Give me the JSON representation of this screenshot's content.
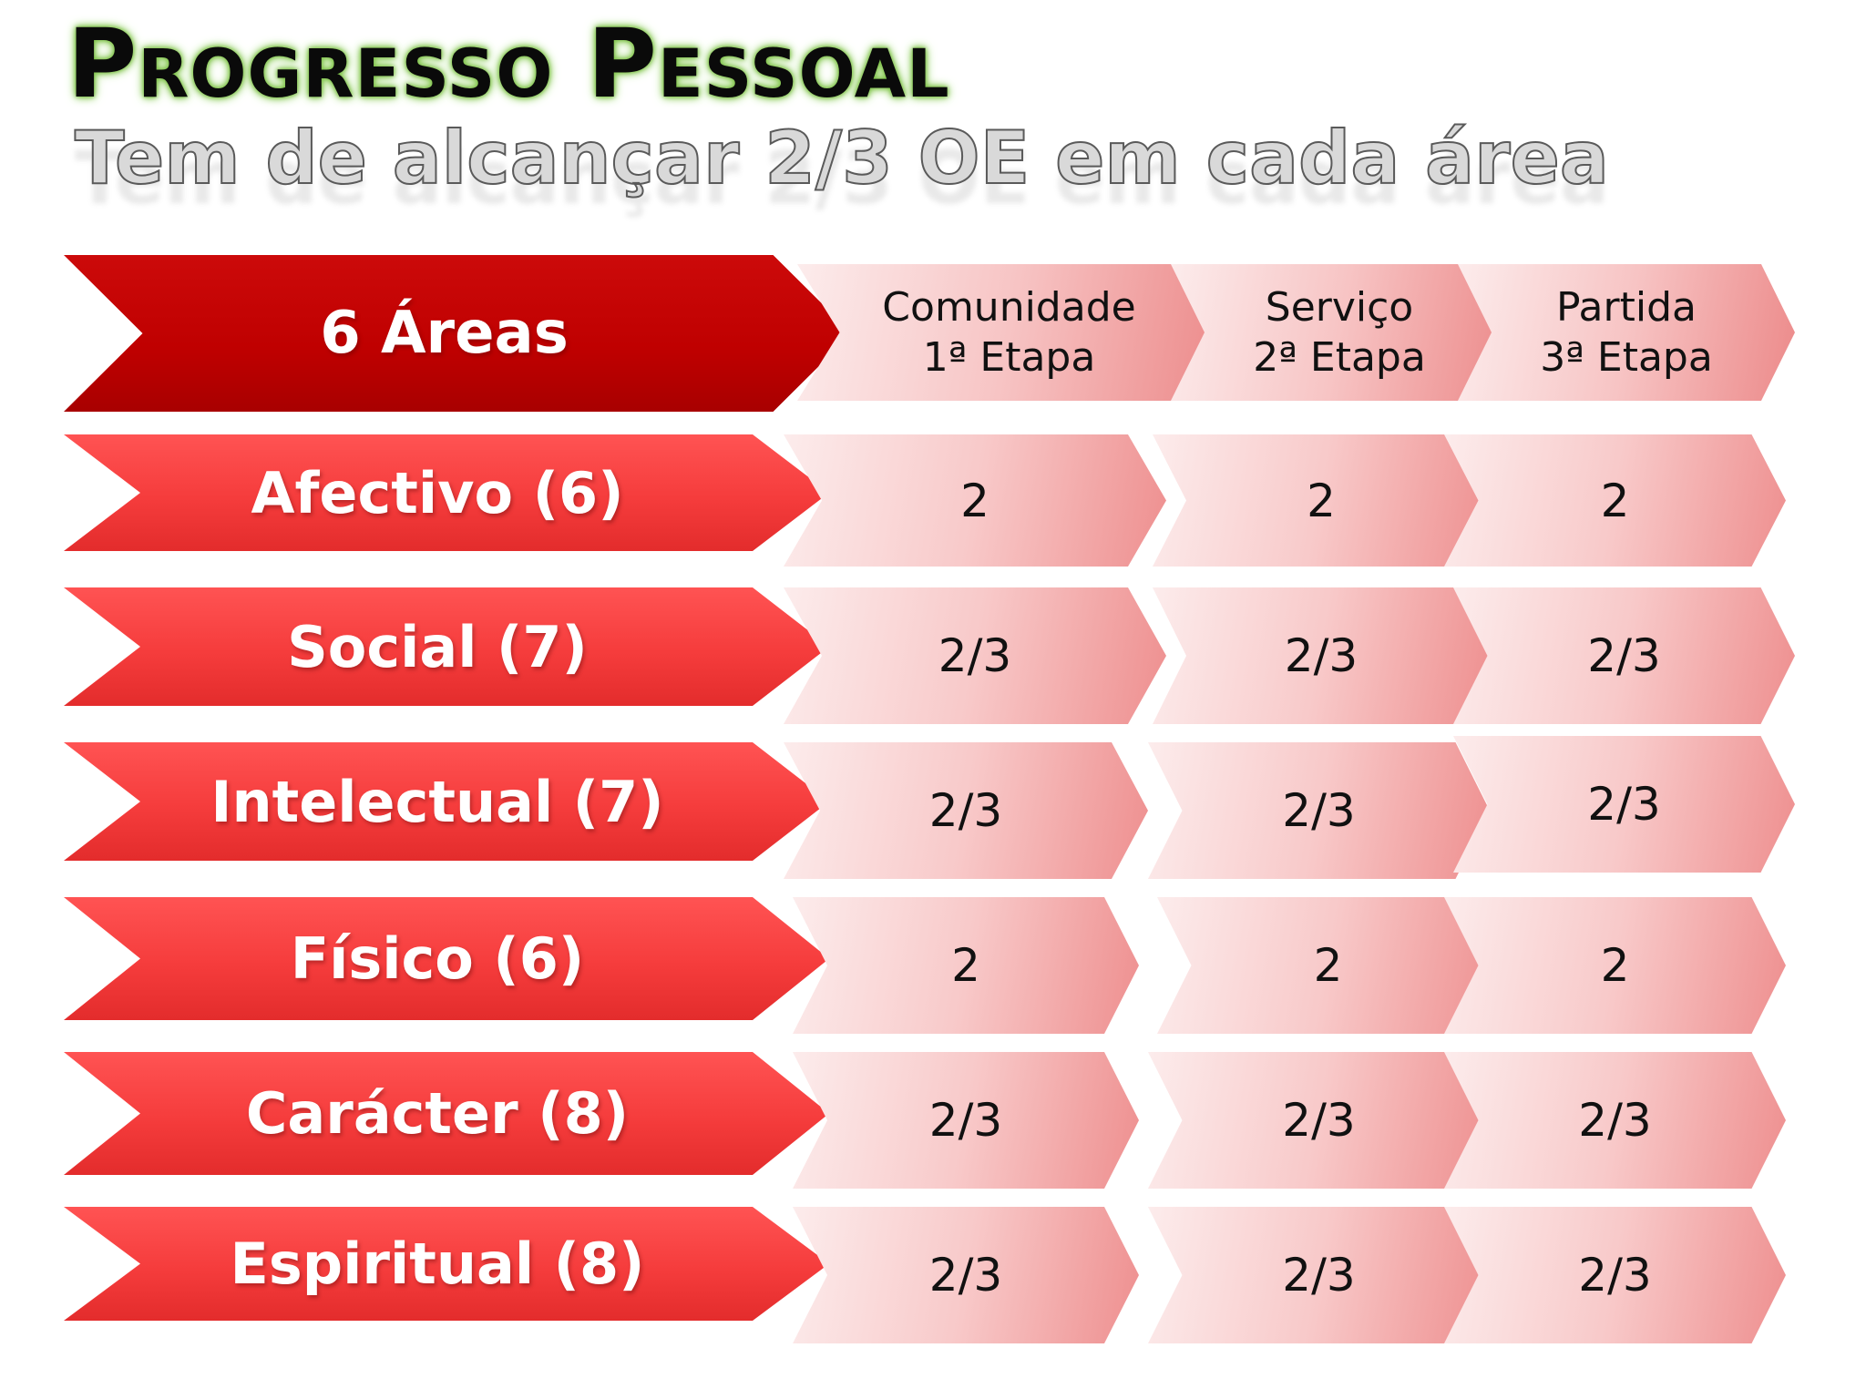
{
  "slide": {
    "title": "Progresso Pessoal",
    "subtitle": "Tem de alcançar 2/3 OE em cada área"
  },
  "table": {
    "header_label": "6 Áreas",
    "stages": [
      {
        "name": "Comunidade",
        "stage": "1ª Etapa"
      },
      {
        "name": "Serviço",
        "stage": "2ª Etapa"
      },
      {
        "name": "Partida",
        "stage": "3ª Etapa"
      }
    ],
    "rows": [
      {
        "area": "Afectivo (6)",
        "values": [
          "2",
          "2",
          "2"
        ]
      },
      {
        "area": "Social (7)",
        "values": [
          "2/3",
          "2/3",
          "2/3"
        ]
      },
      {
        "area": "Intelectual (7)",
        "values": [
          "2/3",
          "2/3",
          "2/3"
        ]
      },
      {
        "area": "Físico (6)",
        "values": [
          "2",
          "2",
          "2"
        ]
      },
      {
        "area": "Carácter (8)",
        "values": [
          "2/3",
          "2/3",
          "2/3"
        ]
      },
      {
        "area": "Espiritual (8)",
        "values": [
          "2/3",
          "2/3",
          "2/3"
        ]
      }
    ]
  },
  "colors": {
    "header_chevron": "#bf0000",
    "area_chevron": "#f53c3c",
    "cell_light": "#fcecec",
    "cell_dark": "#ee8f8f",
    "title_glow": "#7fc24a"
  }
}
